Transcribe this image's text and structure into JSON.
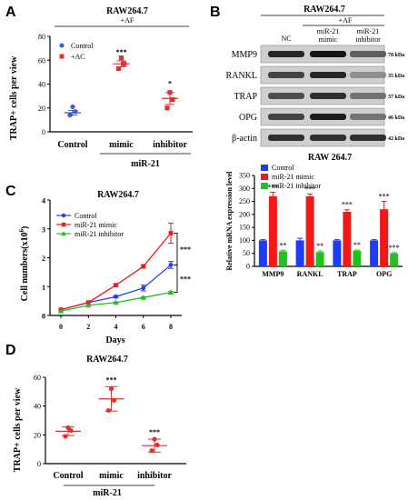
{
  "panels": {
    "A": {
      "letter": "A",
      "chart_data": {
        "type": "scatter",
        "title": "RAW264.7",
        "treatment_label": "+AF",
        "ylabel": "TRAP+ cells per view",
        "xlabel": "miR-21",
        "categories": [
          "Control",
          "mimic",
          "inhibitor"
        ],
        "ylim": [
          0,
          80
        ],
        "yticks": [
          0,
          20,
          40,
          60,
          80
        ],
        "legend": [
          {
            "name": "Control",
            "marker": "circle",
            "color": "#3b5bdb"
          },
          {
            "name": "+AC",
            "marker": "square",
            "color": "#e03131"
          }
        ],
        "series": [
          {
            "category": "Control",
            "points": [
              14,
              17,
              21
            ],
            "mean": 16,
            "sem": 2,
            "color": "#3b5bdb",
            "marker": "circle",
            "annot": ""
          },
          {
            "category": "mimic",
            "points": [
              53,
              57,
              62
            ],
            "mean": 57,
            "sem": 2.5,
            "color": "#e03131",
            "marker": "square",
            "annot": "***"
          },
          {
            "category": "inhibitor",
            "points": [
              20,
              27,
              33
            ],
            "mean": 28,
            "sem": 5,
            "color": "#e03131",
            "marker": "square",
            "annot": "*"
          }
        ]
      }
    },
    "B": {
      "letter": "B",
      "cell_line": "RAW264.7",
      "treatment": "+AF",
      "lanes": [
        "NC",
        "miR-21\nmimic",
        "miR-21\ninhibitor"
      ],
      "bands": [
        {
          "name": "MMP9",
          "kda": "78 kDa",
          "intensity": [
            0.85,
            0.95,
            0.55
          ]
        },
        {
          "name": "RANKL",
          "kda": "35 kDa",
          "intensity": [
            0.7,
            0.85,
            0.3
          ]
        },
        {
          "name": "TRAP",
          "kda": "37 kDa",
          "intensity": [
            0.65,
            0.8,
            0.45
          ]
        },
        {
          "name": "OPG",
          "kda": "46 kDa",
          "intensity": [
            0.7,
            0.9,
            0.45
          ]
        },
        {
          "name": "β-actin",
          "kda": "42 kDa",
          "intensity": [
            0.8,
            0.8,
            0.8
          ]
        }
      ],
      "chart_data": {
        "type": "bar",
        "title": "RAW 264.7",
        "ylabel": "Relative mRNA expression level",
        "categories": [
          "MMP9",
          "RANKL",
          "TRAP",
          "OPG"
        ],
        "ylim": [
          0,
          350
        ],
        "yticks": [
          0,
          50,
          100,
          150,
          200,
          250,
          300,
          350
        ],
        "series": [
          {
            "name": "Control",
            "color": "#1f3cf5",
            "values": [
              100,
              100,
              100,
              100
            ],
            "errors": [
              3,
              8,
              3,
              3
            ],
            "annot": [
              "",
              "",
              "",
              ""
            ]
          },
          {
            "name": "miR-21 mimic",
            "color": "#f01818",
            "values": [
              270,
              270,
              210,
              220
            ],
            "errors": [
              15,
              8,
              8,
              30
            ],
            "annot": [
              "***",
              "***",
              "***",
              "***"
            ]
          },
          {
            "name": "miR-21 inhibitor",
            "color": "#22c020",
            "values": [
              58,
              55,
              60,
              50
            ],
            "errors": [
              4,
              4,
              3,
              3
            ],
            "annot": [
              "**",
              "**",
              "**",
              "***"
            ]
          }
        ]
      }
    },
    "C": {
      "letter": "C",
      "chart_data": {
        "type": "line",
        "title": "RAW264.7",
        "xlabel": "Days",
        "ylabel_main": "Cell numbers(x10",
        "ylabel_sup": "6",
        "ylabel_end": ")",
        "x": [
          0,
          2,
          4,
          6,
          8
        ],
        "xlim": [
          0,
          8
        ],
        "ylim": [
          0,
          4
        ],
        "yticks": [
          0,
          1,
          2,
          3,
          4
        ],
        "series": [
          {
            "name": "Control",
            "color": "#1f3cf5",
            "marker": "circle",
            "values": [
              0.2,
              0.45,
              0.65,
              0.95,
              1.75
            ],
            "errors": [
              0,
              0,
              0.04,
              0.1,
              0.12
            ]
          },
          {
            "name": "miR-21 mimic",
            "color": "#f01818",
            "marker": "square",
            "values": [
              0.2,
              0.45,
              1.05,
              1.7,
              2.85
            ],
            "errors": [
              0,
              0,
              0.05,
              0.06,
              0.35
            ]
          },
          {
            "name": "miR-21 inhibitor",
            "color": "#22c020",
            "marker": "triangle",
            "values": [
              0.15,
              0.35,
              0.45,
              0.62,
              0.8
            ],
            "errors": [
              0,
              0,
              0.02,
              0.03,
              0.04
            ]
          }
        ],
        "annotations": [
          "***",
          "***"
        ]
      }
    },
    "D": {
      "letter": "D",
      "chart_data": {
        "type": "scatter",
        "title": "RAW264.7",
        "ylabel": "TRAP+ cells per view",
        "xlabel": "miR-21",
        "categories": [
          "Control",
          "mimic",
          "inhibitor"
        ],
        "ylim": [
          0,
          60
        ],
        "yticks": [
          0,
          20,
          40,
          60
        ],
        "series": [
          {
            "category": "Control",
            "points": [
              19,
              23,
              25
            ],
            "mean": 22.5,
            "sd": 3,
            "color": "#e03131",
            "annot": ""
          },
          {
            "category": "mimic",
            "points": [
              37,
              44,
              52
            ],
            "mean": 45,
            "sd": 8.5,
            "color": "#e03131",
            "annot": "***"
          },
          {
            "category": "inhibitor",
            "points": [
              9,
              13,
              17
            ],
            "mean": 12.5,
            "sd": 4.5,
            "color": "#e03131",
            "annot": "***"
          }
        ]
      }
    }
  }
}
